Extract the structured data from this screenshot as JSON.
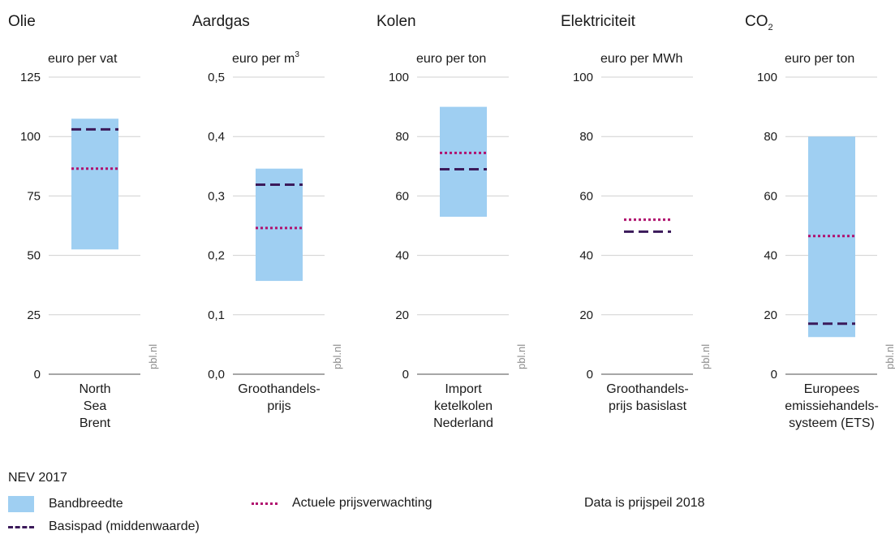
{
  "colors": {
    "band": "#9fcff2",
    "actual": "#b0116e",
    "base": "#3b1a5a",
    "axis": "#a6a6a6",
    "grid": "#d0d0d0"
  },
  "watermark": "pbl.nl",
  "legend": {
    "title": "NEV 2017",
    "band": "Bandbreedte",
    "actual": "Actuele prijsverwachting",
    "base": "Basispad (middenwaarde)",
    "note": "Data is prijspeil 2018"
  },
  "chart_data": [
    {
      "type": "bar",
      "title": "Olie",
      "title_sub": "",
      "ylabel": "euro per vat",
      "ylabel_sup": "",
      "category": [
        "North",
        "Sea",
        "Brent"
      ],
      "ylim": [
        0,
        125
      ],
      "ticks": [
        "0",
        "25",
        "50",
        "75",
        "100",
        "125"
      ],
      "tick_values": [
        0,
        25,
        50,
        75,
        100,
        125
      ],
      "band": [
        52.5,
        107.5
      ],
      "actual": 86.5,
      "base": 103
    },
    {
      "type": "bar",
      "title": "Aardgas",
      "title_sub": "",
      "ylabel": "euro per m",
      "ylabel_sup": "3",
      "category": [
        "Groothandels-",
        "prijs"
      ],
      "ylim": [
        0,
        0.5
      ],
      "ticks": [
        "0,0",
        "0,1",
        "0,2",
        "0,3",
        "0,4",
        "0,5"
      ],
      "tick_values": [
        0,
        0.1,
        0.2,
        0.3,
        0.4,
        0.5
      ],
      "band": [
        0.157,
        0.346
      ],
      "actual": 0.246,
      "base": 0.319
    },
    {
      "type": "bar",
      "title": "Kolen",
      "title_sub": "",
      "ylabel": "euro per ton",
      "ylabel_sup": "",
      "category": [
        "Import",
        "ketelkolen",
        "Nederland"
      ],
      "ylim": [
        0,
        100
      ],
      "ticks": [
        "0",
        "20",
        "40",
        "60",
        "80",
        "100"
      ],
      "tick_values": [
        0,
        20,
        40,
        60,
        80,
        100
      ],
      "band": [
        53,
        90
      ],
      "actual": 74.5,
      "base": 69
    },
    {
      "type": "bar",
      "title": "Elektriciteit",
      "title_sub": "",
      "ylabel": "euro per MWh",
      "ylabel_sup": "",
      "category": [
        "Groothandels-",
        "prijs basislast"
      ],
      "ylim": [
        0,
        100
      ],
      "ticks": [
        "0",
        "20",
        "40",
        "60",
        "80",
        "100"
      ],
      "tick_values": [
        0,
        20,
        40,
        60,
        80,
        100
      ],
      "band": null,
      "actual": 52,
      "base": 48
    },
    {
      "type": "bar",
      "title": "CO",
      "title_sub": "2",
      "ylabel": "euro per ton",
      "ylabel_sup": "",
      "category": [
        "Europees",
        "emissiehandels-",
        "systeem (ETS)"
      ],
      "ylim": [
        0,
        100
      ],
      "ticks": [
        "0",
        "20",
        "40",
        "60",
        "80",
        "100"
      ],
      "tick_values": [
        0,
        20,
        40,
        60,
        80,
        100
      ],
      "band": [
        12.5,
        80
      ],
      "actual": 46.5,
      "base": 17
    }
  ]
}
